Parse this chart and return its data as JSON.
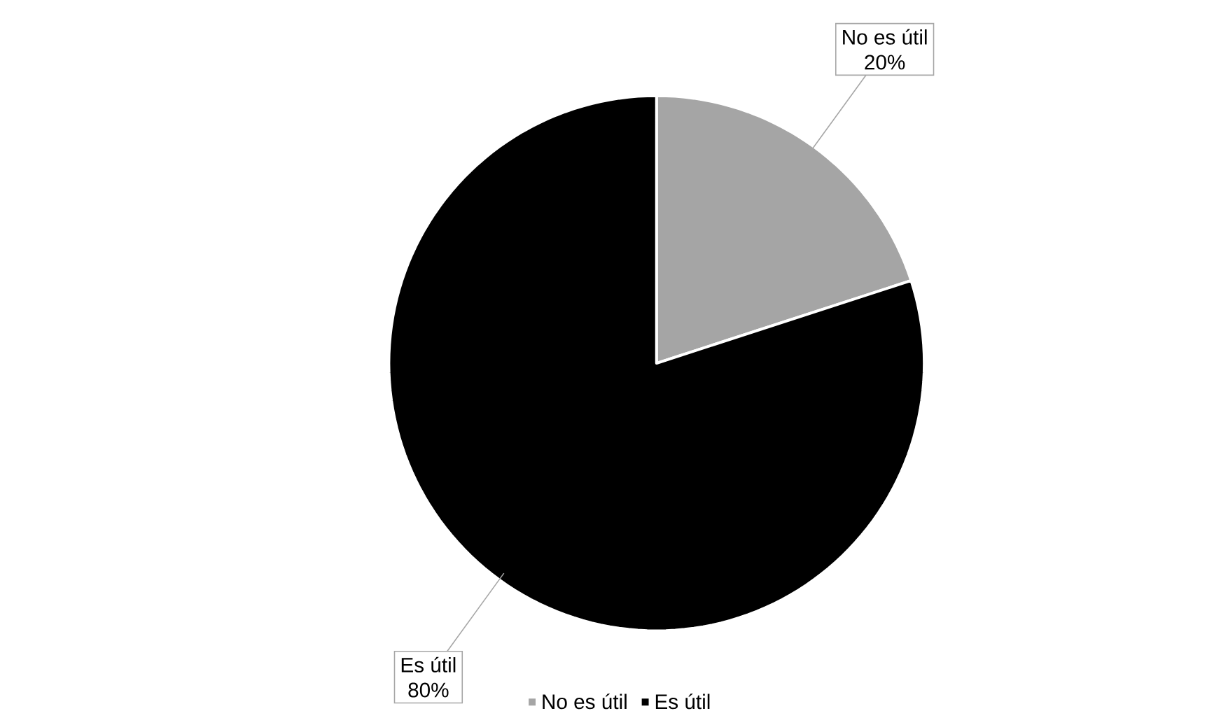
{
  "chart_data": {
    "type": "pie",
    "categories": [
      "No es útil",
      "Es útil"
    ],
    "values": [
      20,
      80
    ],
    "value_labels": [
      "20%",
      "80%"
    ],
    "colors": [
      "#a5a5a5",
      "#000000"
    ],
    "legend": "bottom"
  }
}
